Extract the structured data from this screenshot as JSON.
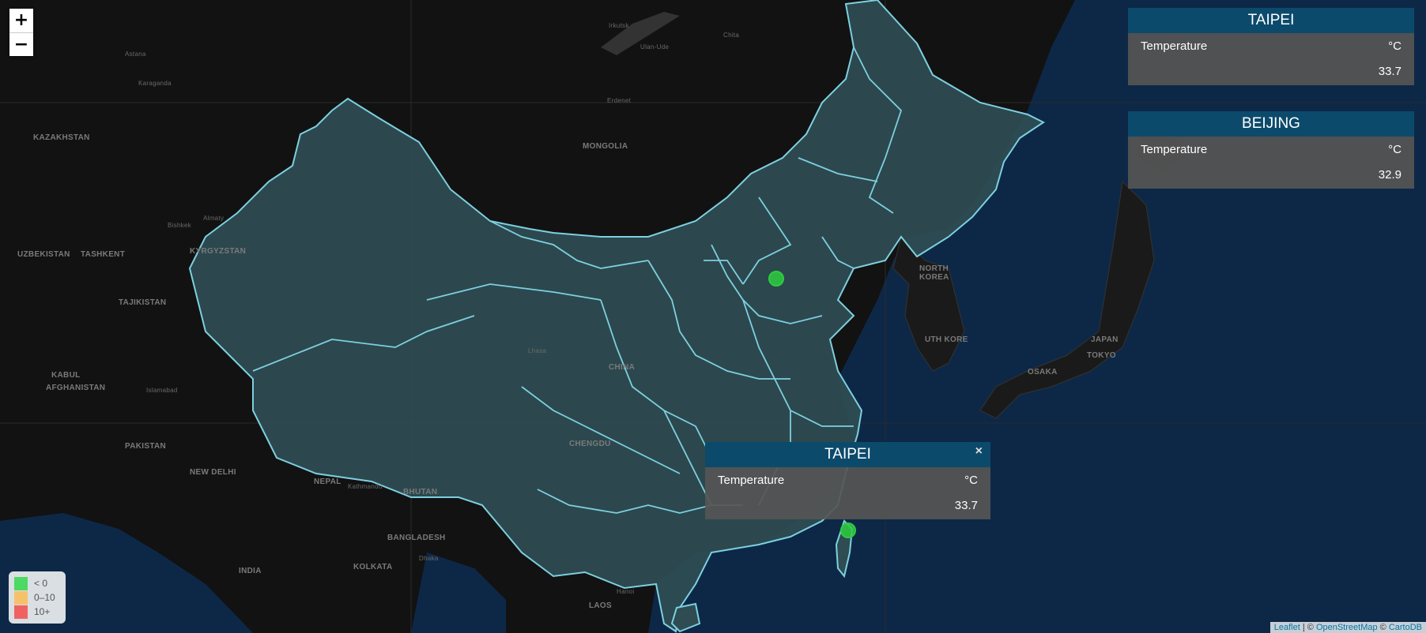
{
  "zoom": {
    "in_label": "+",
    "out_label": "−"
  },
  "colors": {
    "land": "#121212",
    "sea": "#0d2847",
    "china_fill": "#2e4c52",
    "china_border": "#7dd0e0",
    "marker": "#2ecc40",
    "panel_header": "#0c4a6c"
  },
  "places": {
    "kazakhstan": "KAZAKHSTAN",
    "mongolia": "MONGOLIA",
    "uzbekistan": "UZBEKISTAN",
    "kyrgyzstan": "KYRGYZSTAN",
    "tajikistan": "TAJIKISTAN",
    "afghanistan": "AFGHANISTAN",
    "pakistan": "PAKISTAN",
    "nepal": "NEPAL",
    "bhutan": "BHUTAN",
    "india": "INDIA",
    "bangladesh": "BANGLADESH",
    "laos": "LAOS",
    "north_korea": "NORTH\nKOREA",
    "south_korea": "UTH KORE",
    "japan": "JAPAN",
    "china": "CHINA",
    "tashkent": "TASHKENT",
    "irkutsk": "Irkutsk",
    "astana": "Astana",
    "karaganda": "Karaganda",
    "almaty": "Almaty",
    "bishkek": "Bishkek",
    "kabul": "KABUL",
    "islamabad": "Islamabad",
    "new_delhi": "NEW DELHI",
    "kolkata": "KOLKATA",
    "tokyo": "TOKYO",
    "osaka": "OSAKA",
    "chengdu": "CHENGDU",
    "lhasa": "Lhasa",
    "dhaka": "Dhaka",
    "hanoi": "Hanoi",
    "kathmandu": "Kathmandu",
    "erdenet": "Erdenet",
    "chita": "Chita",
    "ulan_ude": "Ulan-Ude"
  },
  "info_panels": [
    {
      "city": "TAIPEI",
      "label": "Temperature",
      "unit": "°C",
      "value": "33.7"
    },
    {
      "city": "BEIJING",
      "label": "Temperature",
      "unit": "°C",
      "value": "32.9"
    }
  ],
  "popup": {
    "city": "TAIPEI",
    "label": "Temperature",
    "unit": "°C",
    "value": "33.7",
    "close_label": "×"
  },
  "markers": [
    {
      "name": "Beijing",
      "lat": 39.9,
      "lon": 116.4
    },
    {
      "name": "Taipei",
      "lat": 25.03,
      "lon": 121.56
    }
  ],
  "legend": [
    {
      "label": "< 0",
      "color": "#4cd964"
    },
    {
      "label": "0–10",
      "color": "#f5c26b"
    },
    {
      "label": "10+",
      "color": "#f06262"
    }
  ],
  "attribution": {
    "leaflet": "Leaflet",
    "sep1": " | © ",
    "osm": "OpenStreetMap",
    "sep2": " © ",
    "carto": "CartoDB"
  }
}
